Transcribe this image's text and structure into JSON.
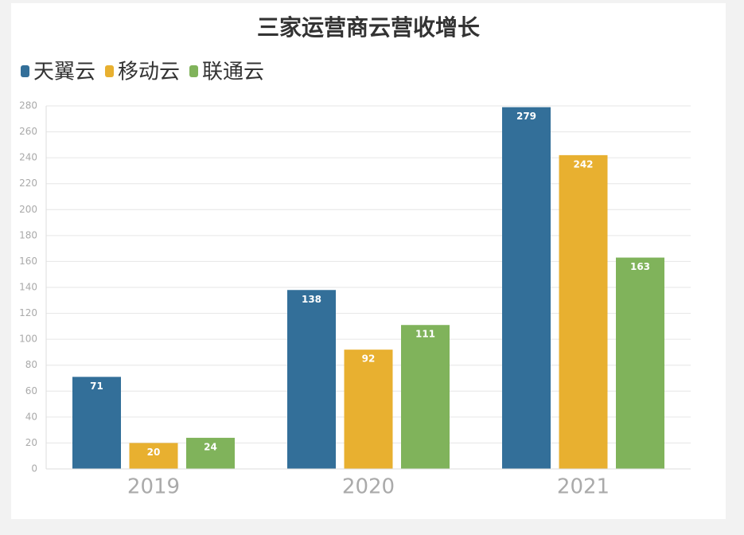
{
  "chart_data": {
    "type": "bar",
    "title": "三家运营商云营收增长",
    "categories": [
      "2019",
      "2020",
      "2021"
    ],
    "series": [
      {
        "name": "天翼云",
        "color": "#336f99",
        "values": [
          71,
          138,
          279
        ]
      },
      {
        "name": "移动云",
        "color": "#e8b030",
        "values": [
          20,
          92,
          242
        ]
      },
      {
        "name": "联通云",
        "color": "#80b35b",
        "values": [
          24,
          111,
          163
        ]
      }
    ],
    "ylim": [
      0,
      280
    ],
    "yticks": [
      0,
      20,
      40,
      60,
      80,
      100,
      120,
      140,
      160,
      180,
      200,
      220,
      240,
      260,
      280
    ],
    "grid": true,
    "legend": "top-left"
  }
}
